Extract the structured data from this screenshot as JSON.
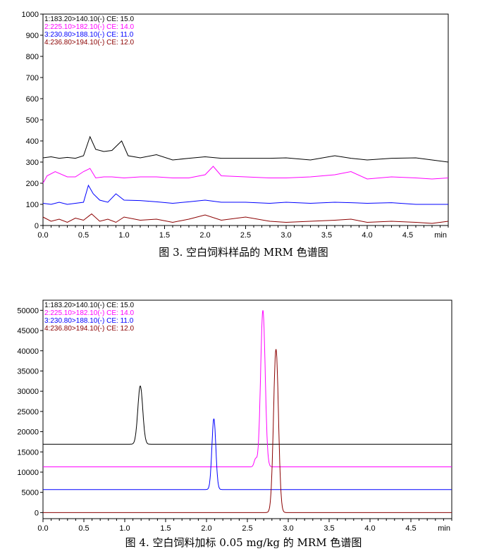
{
  "chart_data": [
    {
      "type": "line",
      "caption": "图 3.  空白饲料样品的 MRM 色谱图",
      "xlabel": "min",
      "xlim": [
        0,
        5
      ],
      "ylim": [
        0,
        1000
      ],
      "xticks": [
        "0.0",
        "0.5",
        "1.0",
        "1.5",
        "2.0",
        "2.5",
        "3.0",
        "3.5",
        "4.0",
        "4.5"
      ],
      "yticks": [
        "0",
        "100",
        "200",
        "300",
        "400",
        "500",
        "600",
        "700",
        "800",
        "900",
        "1000"
      ],
      "legend_position": "top-left",
      "series": [
        {
          "name": "1:183.20>140.10(-) CE: 15.0",
          "color": "#000000",
          "x": [
            0.0,
            0.1,
            0.2,
            0.3,
            0.4,
            0.5,
            0.58,
            0.65,
            0.75,
            0.85,
            0.97,
            1.05,
            1.2,
            1.4,
            1.6,
            1.8,
            2.0,
            2.2,
            2.5,
            2.8,
            3.0,
            3.3,
            3.6,
            3.8,
            4.0,
            4.3,
            4.6,
            4.8,
            5.0
          ],
          "y": [
            320,
            325,
            318,
            322,
            318,
            330,
            420,
            360,
            350,
            355,
            400,
            330,
            320,
            335,
            310,
            318,
            325,
            318,
            318,
            318,
            320,
            310,
            330,
            318,
            310,
            318,
            320,
            310,
            300
          ]
        },
        {
          "name": "2:225.10>182.10(-) CE: 14.0",
          "color": "#ff00ff",
          "x": [
            0.0,
            0.05,
            0.15,
            0.3,
            0.4,
            0.5,
            0.58,
            0.65,
            0.75,
            0.85,
            1.0,
            1.2,
            1.4,
            1.6,
            1.8,
            2.0,
            2.1,
            2.2,
            2.5,
            2.8,
            3.0,
            3.3,
            3.6,
            3.8,
            4.0,
            4.3,
            4.6,
            4.8,
            5.0
          ],
          "y": [
            200,
            235,
            255,
            230,
            230,
            255,
            270,
            225,
            230,
            230,
            225,
            230,
            230,
            225,
            225,
            240,
            280,
            235,
            230,
            225,
            225,
            230,
            240,
            255,
            220,
            230,
            225,
            220,
            225
          ]
        },
        {
          "name": "3:230.80>188.10(-) CE: 11.0",
          "color": "#0000ff",
          "x": [
            0.0,
            0.1,
            0.2,
            0.3,
            0.4,
            0.5,
            0.56,
            0.62,
            0.7,
            0.8,
            0.9,
            1.0,
            1.2,
            1.4,
            1.6,
            1.8,
            2.0,
            2.2,
            2.5,
            2.8,
            3.0,
            3.3,
            3.6,
            3.8,
            4.0,
            4.3,
            4.6,
            4.8,
            5.0
          ],
          "y": [
            105,
            100,
            110,
            100,
            105,
            110,
            190,
            150,
            120,
            110,
            150,
            120,
            118,
            112,
            105,
            112,
            120,
            110,
            110,
            105,
            110,
            105,
            110,
            108,
            105,
            108,
            100,
            100,
            100
          ]
        },
        {
          "name": "4:236.80>194.10(-) CE: 12.0",
          "color": "#8b0000",
          "x": [
            0.0,
            0.1,
            0.2,
            0.3,
            0.4,
            0.5,
            0.6,
            0.7,
            0.8,
            0.9,
            1.0,
            1.2,
            1.4,
            1.6,
            1.8,
            2.0,
            2.2,
            2.5,
            2.8,
            3.0,
            3.3,
            3.6,
            3.8,
            4.0,
            4.3,
            4.6,
            4.8,
            5.0
          ],
          "y": [
            40,
            20,
            30,
            15,
            35,
            25,
            55,
            20,
            30,
            15,
            40,
            25,
            30,
            15,
            30,
            50,
            25,
            40,
            20,
            15,
            20,
            25,
            30,
            15,
            20,
            15,
            10,
            20
          ]
        }
      ]
    },
    {
      "type": "line",
      "caption": "图 4.  空白饲料加标 0.05 mg/kg 的 MRM 色谱图",
      "xlabel": "min",
      "xlim": [
        0,
        5
      ],
      "ylim": [
        -1500,
        52500
      ],
      "xticks": [
        "0.0",
        "0.5",
        "1.0",
        "1.5",
        "2.0",
        "2.5",
        "3.0",
        "3.5",
        "4.0",
        "4.5"
      ],
      "yticks": [
        "0",
        "5000",
        "10000",
        "15000",
        "20000",
        "25000",
        "30000",
        "35000",
        "40000",
        "45000",
        "50000"
      ],
      "legend_position": "top-left",
      "series": [
        {
          "name": "1:183.20>140.10(-) CE: 15.0",
          "color": "#000000",
          "baseline": 16900,
          "peaks": [
            {
              "x": 1.19,
              "height": 31300,
              "width": 0.03
            }
          ]
        },
        {
          "name": "2:225.10>182.10(-) CE: 14.0",
          "color": "#ff00ff",
          "baseline": 11300,
          "peaks": [
            {
              "x": 2.6,
              "height": 13200,
              "width": 0.018
            },
            {
              "x": 2.69,
              "height": 50000,
              "width": 0.028
            }
          ]
        },
        {
          "name": "3:230.80>188.10(-) CE: 11.0",
          "color": "#0000ff",
          "baseline": 5700,
          "peaks": [
            {
              "x": 2.09,
              "height": 23200,
              "width": 0.024
            }
          ]
        },
        {
          "name": "4:236.80>194.10(-) CE: 12.0",
          "color": "#8b0000",
          "baseline": 0,
          "peaks": [
            {
              "x": 2.85,
              "height": 40400,
              "width": 0.03
            }
          ]
        }
      ]
    }
  ]
}
